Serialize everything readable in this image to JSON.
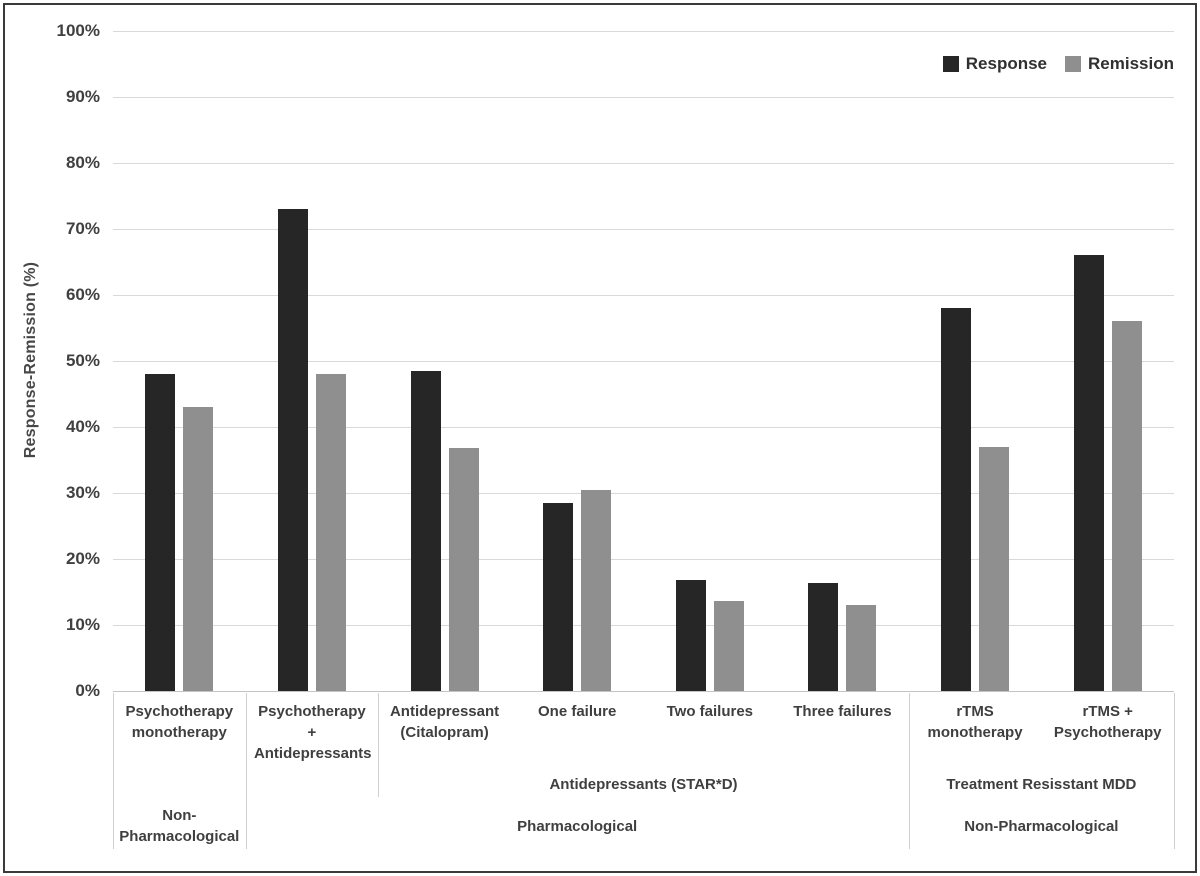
{
  "chart_data": {
    "type": "bar",
    "ylabel": "Response-Remission (%)",
    "y_axis": {
      "min": 0,
      "max": 100,
      "tick_step": 10,
      "tick_labels": [
        "100%",
        "90%",
        "80%",
        "70%",
        "60%",
        "50%",
        "40%",
        "30%",
        "20%",
        "10%",
        "0%"
      ]
    },
    "grid": "horizontal",
    "gridline_color": "#d9d9d9",
    "categories": [
      "Psychotherapy monotherapy",
      "Psychotherapy + Antidepressants",
      "Antidepressant (Citalopram)",
      "One failure",
      "Two failures",
      "Three failures",
      "rTMS monotherapy",
      "rTMS + Psychotherapy"
    ],
    "series": [
      {
        "name": "Response",
        "color": "#262626",
        "values": [
          48,
          73,
          48.5,
          28.5,
          16.8,
          16.3,
          58,
          66
        ]
      },
      {
        "name": "Remission",
        "color": "#8f8f8f",
        "values": [
          43,
          48,
          36.8,
          30.5,
          13.7,
          13,
          37,
          56
        ]
      }
    ],
    "legend": {
      "position": "top-right",
      "entries": [
        "Response",
        "Remission"
      ]
    },
    "group_axis": {
      "mid_labels": [
        {
          "label": "Antidepressants (STAR*D)",
          "start_category": 2,
          "end_category": 5
        },
        {
          "label": "Treatment Resisstant MDD",
          "start_category": 6,
          "end_category": 7
        }
      ],
      "outer_labels": [
        {
          "label": "Non-Pharmacological",
          "start_category": 0,
          "end_category": 0
        },
        {
          "label": "Pharmacological",
          "start_category": 1,
          "end_category": 5
        },
        {
          "label": "Non-Pharmacological",
          "start_category": 6,
          "end_category": 7
        }
      ]
    }
  }
}
